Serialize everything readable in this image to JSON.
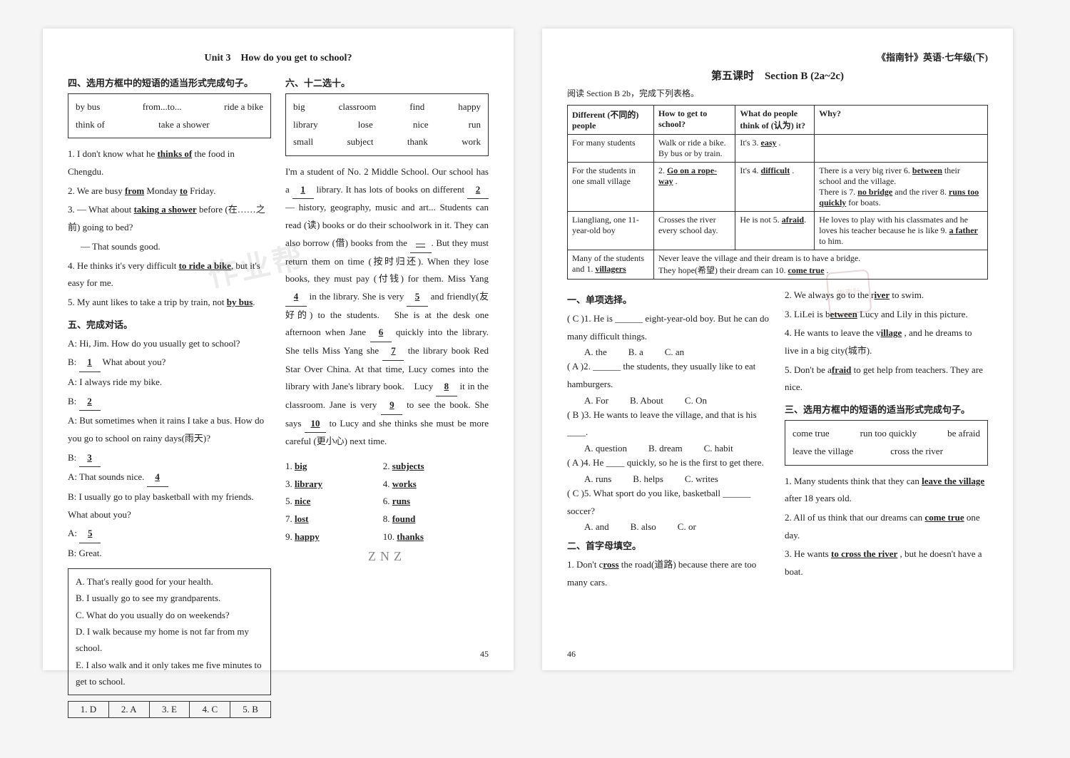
{
  "page_left": {
    "unit_title": "Unit 3　How do you get to school?",
    "sec4_heading": "四、选用方框中的短语的适当形式完成句子。",
    "wordbox4": {
      "r1": [
        "by bus",
        "from...to...",
        "ride a bike"
      ],
      "r2": [
        "think of",
        "take a shower",
        ""
      ]
    },
    "q4": [
      {
        "pre": "1. I don't know what he ",
        "ans": "thinks of",
        "post": " the food in Chengdu."
      },
      {
        "pre": "2. We are busy ",
        "ans": "from",
        "mid": " Monday ",
        "ans2": "to",
        "post": " Friday."
      },
      {
        "pre": "3. — What about ",
        "ans": "taking a shower",
        "post": " before (在……之前) going to bed?",
        "post2": "— That sounds good."
      },
      {
        "pre": "4. He thinks it's very difficult ",
        "ans": "to ride a bike",
        "post": ", but it's easy for me."
      },
      {
        "pre": "5. My aunt likes to take a trip by train, not ",
        "ans": "by bus",
        "post": "."
      }
    ],
    "sec5_heading": "五、完成对话。",
    "dialog": [
      "A: Hi, Jim. How do you usually get to school?",
      {
        "label": "B:",
        "blank": "1",
        "post": " What about you?"
      },
      "A: I always ride my bike.",
      {
        "label": "B:",
        "blank": "2",
        "post": ""
      },
      "A: But sometimes when it rains I take a bus. How do you go to school on rainy days(雨天)?",
      {
        "label": "B:",
        "blank": "3",
        "post": ""
      },
      {
        "label": "A: That sounds nice.",
        "blank": "4",
        "post": ""
      },
      "B: I usually go to play basketball with my friends. What about you?",
      {
        "label": "A:",
        "blank": "5",
        "post": ""
      },
      "B: Great."
    ],
    "options5": [
      "A. That's really good for your health.",
      "B. I usually go to see my grandparents.",
      "C. What do you usually do on weekends?",
      "D. I walk because my home is not far from my school.",
      "E. I also walk and it only takes me five minutes to get to school."
    ],
    "ans5": [
      "1. D",
      "2. A",
      "3. E",
      "4. C",
      "5. B"
    ],
    "sec6_heading": "六、十二选十。",
    "wordbox6": {
      "r1": [
        "big",
        "classroom",
        "find",
        "happy"
      ],
      "r2": [
        "library",
        "lose",
        "nice",
        "run"
      ],
      "r3": [
        "small",
        "subject",
        "thank",
        "work"
      ]
    },
    "passage": [
      "I'm a student of No. 2 Middle School. Our school has a ",
      {
        "n": "1"
      },
      " library. It has lots of books on different ",
      {
        "n": "2"
      },
      " — history, geography, music and art... Students can read (读) books or do their schoolwork in it. They can also borrow (借) books from the ",
      {
        "n": "—"
      },
      ". But they must return them on time (按时归还). When they lose books, they must pay (付钱) for them. Miss Yang ",
      {
        "n": "4"
      },
      " in the library. She is very ",
      {
        "n": "5"
      },
      " and friendly(友好的) to the students.",
      "　She is at the desk one afternoon when Jane ",
      {
        "n": "6"
      },
      " quickly into the library. She tells Miss Yang she ",
      {
        "n": "7"
      },
      " the library book ",
      "Red Star Over China",
      ". At that time, Lucy comes into the library with Jane's library book.",
      "　Lucy ",
      {
        "n": "8"
      },
      " it in the classroom. Jane is very ",
      {
        "n": "9"
      },
      " to see the book. She says ",
      {
        "n": "10"
      },
      " to Lucy and she thinks she must be more careful (更小心) next time."
    ],
    "ans6": [
      [
        "1.",
        "big"
      ],
      [
        "2.",
        "subjects"
      ],
      [
        "3.",
        "library"
      ],
      [
        "4.",
        "works"
      ],
      [
        "5.",
        "nice"
      ],
      [
        "6.",
        "runs"
      ],
      [
        "7.",
        "lost"
      ],
      [
        "8.",
        "found"
      ],
      [
        "9.",
        "happy"
      ],
      [
        "10.",
        "thanks"
      ]
    ],
    "pagenum": "45",
    "watermark": "作业帮",
    "znz": "ZNZ"
  },
  "page_right": {
    "book_title": "《指南针》英语·七年级(下)",
    "lesson_heading": "第五课时　Section B (2a~2c)",
    "lesson_sub": "阅读 Section B 2b，完成下列表格。",
    "table": {
      "head": [
        "Different (不同的) people",
        "How to get to school?",
        "What do people think of (认为) it?",
        "Why?"
      ],
      "rows": [
        [
          "For many students",
          "Walk or ride a bike. By bus or by train.",
          {
            "pre": "It's 3. ",
            "u": "easy",
            "post": " ."
          },
          ""
        ],
        [
          "For the students in one small village",
          {
            "pre": "2. ",
            "u": "Go on a rope-way",
            "post": " ."
          },
          {
            "pre": "It's 4. ",
            "u": "difficult",
            "post": " ."
          },
          {
            "lines": [
              {
                "pre": "There is a very big river 6. ",
                "u": "between",
                "post": " their school and the village."
              },
              {
                "pre": "There is 7. ",
                "u": "no bridge",
                "post": " and the river 8. ",
                "u2": "runs too quickly",
                "post2": " for boats."
              }
            ]
          }
        ],
        [
          "Liangliang, one 11-year-old boy",
          "Crosses the river every school day.",
          {
            "pre": "He is not 5. ",
            "u": "afraid",
            "post": "."
          },
          {
            "lines": [
              {
                "pre": "He loves to play with his classmates and he loves his teacher because he is like 9. ",
                "u": "a father",
                "post": " to him."
              }
            ]
          }
        ],
        [
          {
            "pre": "Many of the students and 1. ",
            "u": "villagers"
          },
          {
            "colspan": 3,
            "lines": [
              {
                "t": "Never leave the village and their dream is to have a bridge."
              },
              {
                "pre": "They hope(希望) their dream can 10. ",
                "u": "come true",
                "post": " ."
              }
            ]
          }
        ]
      ]
    },
    "sec1_heading": "一、单项选择。",
    "mcq": [
      {
        "ans": "C",
        "n": "1",
        "q": "He is ______ eight-year-old boy. But he can do many difficult things.",
        "opts": [
          "A. the",
          "B. a",
          "C. an"
        ]
      },
      {
        "ans": "A",
        "n": "2",
        "q": "______ the students, they usually like to eat hamburgers.",
        "opts": [
          "A. For",
          "B. About",
          "C. On"
        ]
      },
      {
        "ans": "B",
        "n": "3",
        "q": "He wants to leave the village, and that is his ____.",
        "opts": [
          "A. question",
          "B. dream",
          "C. habit"
        ]
      },
      {
        "ans": "A",
        "n": "4",
        "q": "He ____ quickly, so he is the first to get there.",
        "opts": [
          "A. runs",
          "B. helps",
          "C. writes"
        ]
      },
      {
        "ans": "C",
        "n": "5",
        "q": "What sport do you like, basketball ______ soccer?",
        "opts": [
          "A. and",
          "B. also",
          "C. or"
        ]
      }
    ],
    "sec2_heading": "二、首字母填空。",
    "q2": [
      {
        "pre": "1. Don't c",
        "u": "ross",
        "post": " the road(道路) because there are too many cars."
      },
      {
        "pre": "2. We always go to the r",
        "u": "iver",
        "post": " to swim."
      },
      {
        "pre": "3. LiLei is b",
        "u": "etween",
        "post": " Lucy and Lily in this picture."
      },
      {
        "pre": "4. He wants to leave the v",
        "u": "illage",
        "post": " , and he dreams to live in a big city(城市)."
      },
      {
        "pre": "5. Don't be a",
        "u": "fraid",
        "post": " to get help from teachers. They are nice."
      }
    ],
    "sec3_heading": "三、选用方框中的短语的适当形式完成句子。",
    "wordbox3": {
      "r1": [
        "come true",
        "run too quickly",
        "be afraid"
      ],
      "r2": [
        "leave the village",
        "cross the river",
        ""
      ]
    },
    "q3": [
      {
        "pre": "1. Many students think that they can ",
        "u": "leave the village",
        "post": " after 18 years old."
      },
      {
        "pre": "2. All of us think that our dreams can ",
        "u": "come true",
        "post": " one day."
      },
      {
        "pre": "3. He wants ",
        "u": "to cross the river",
        "post": " , but he doesn't have a boat."
      }
    ],
    "pagenum": "46",
    "stamp": "指南针"
  }
}
